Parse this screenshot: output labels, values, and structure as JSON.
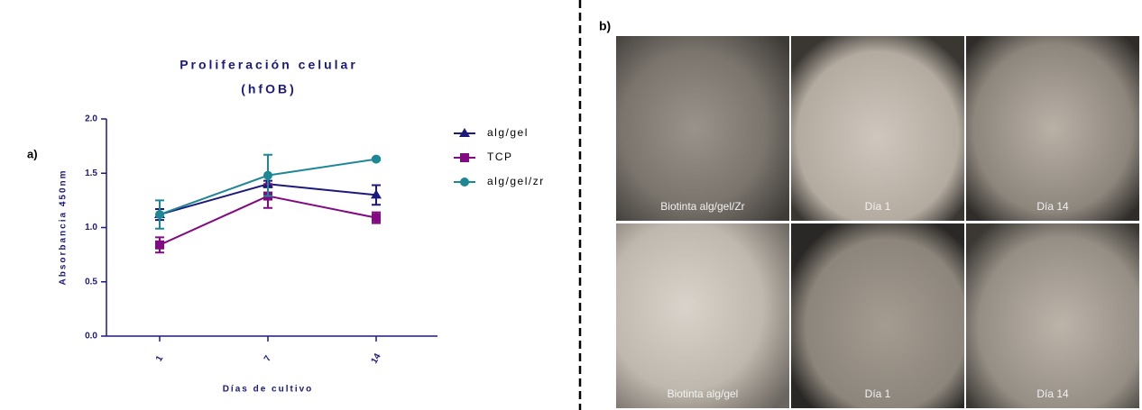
{
  "panel_a_label": "a)",
  "chart_data": {
    "type": "line",
    "title": "Proliferación celular",
    "subtitle": "(hfOB)",
    "x_label": "Días de cultivo",
    "y_label": "Absorbancia 450nm",
    "categories": [
      "1",
      "7",
      "14"
    ],
    "series": [
      {
        "name": "alg/gel",
        "color": "#1b1a7c",
        "marker": "triangle",
        "values": [
          1.12,
          1.4,
          1.3
        ],
        "errors": [
          0.05,
          0.03,
          0.09
        ]
      },
      {
        "name": "TCP",
        "color": "#820a82",
        "marker": "square",
        "values": [
          0.84,
          1.29,
          1.09
        ],
        "errors": [
          0.07,
          0.11,
          0.05
        ]
      },
      {
        "name": "alg/gel/zr",
        "color": "#1e8795",
        "marker": "circle",
        "values": [
          1.12,
          1.48,
          1.63
        ],
        "errors": [
          0.13,
          0.19,
          0.01
        ]
      }
    ],
    "ylim": [
      0,
      2
    ],
    "yticks": [
      {
        "value": 0,
        "label": "0.0"
      },
      0.5,
      {
        "value": 1,
        "label": "1.0"
      },
      1.5,
      {
        "value": 2,
        "label": "2.0"
      }
    ],
    "legend": "right",
    "grid": false
  },
  "panel_b": {
    "label": "b)",
    "images": [
      {
        "caption": "Biotinta alg/gel/Zr"
      },
      {
        "caption": "Día 1"
      },
      {
        "caption": "Día 14"
      },
      {
        "caption": "Biotinta alg/gel"
      },
      {
        "caption": "Día 1"
      },
      {
        "caption": "Día 14"
      }
    ]
  }
}
